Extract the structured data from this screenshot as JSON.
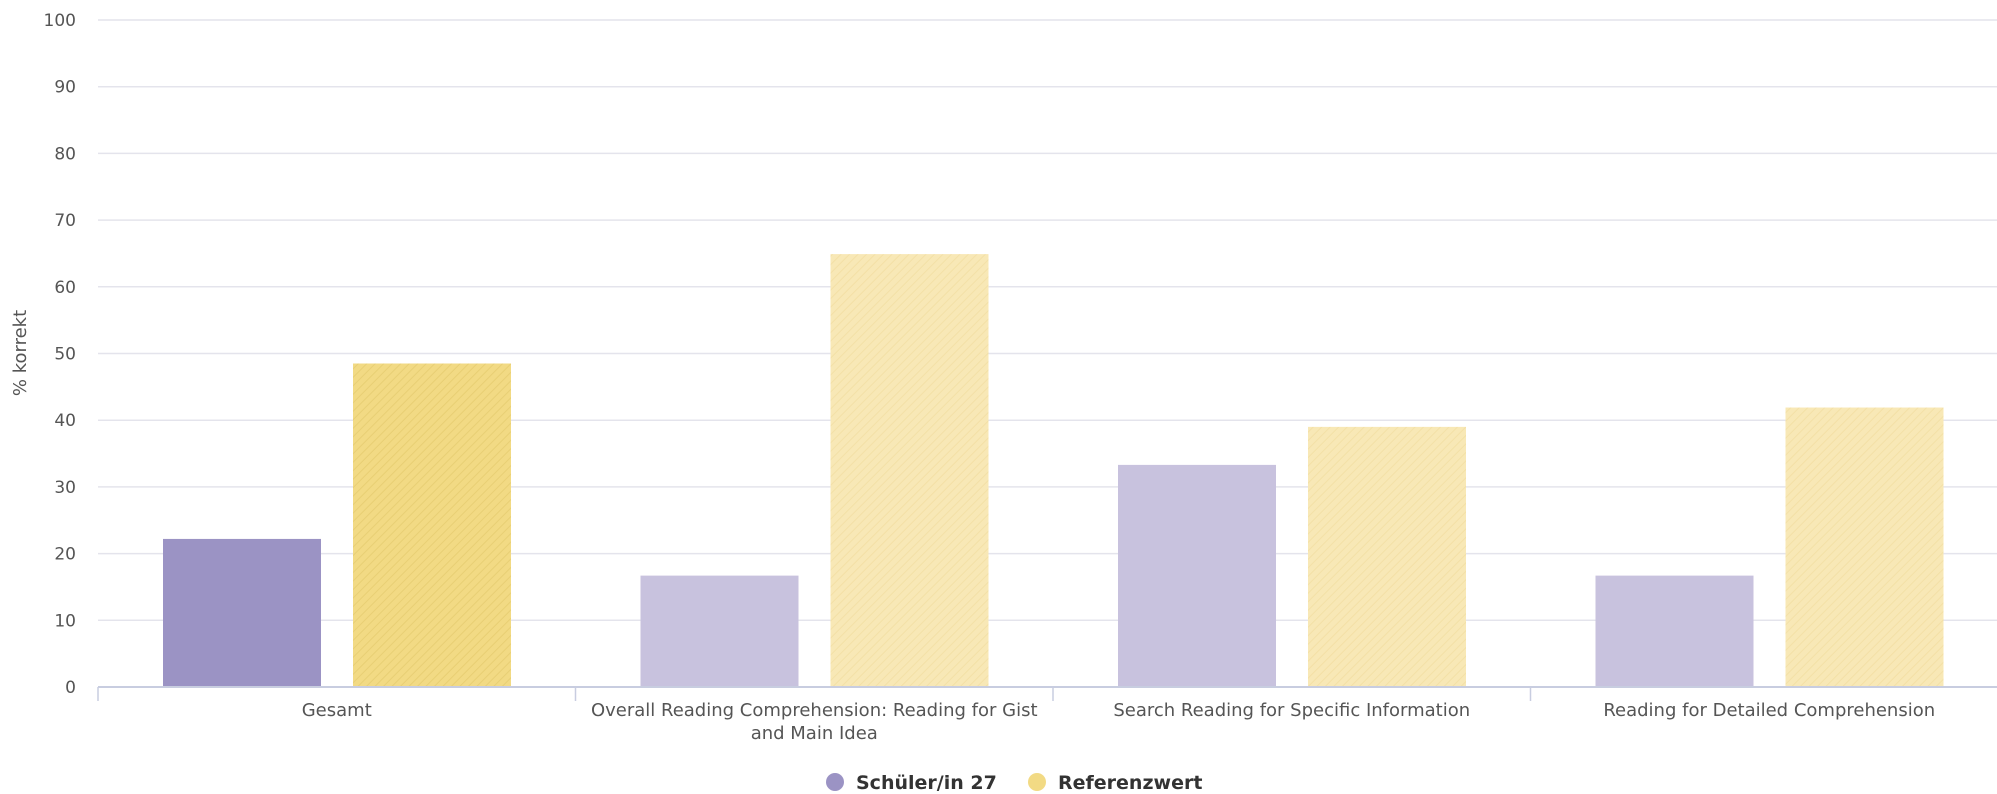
{
  "chart_data": {
    "type": "bar",
    "ylabel": "% korrekt",
    "ylim": [
      0,
      100
    ],
    "yticks": [
      0,
      10,
      20,
      30,
      40,
      50,
      60,
      70,
      80,
      90,
      100
    ],
    "grid": true,
    "legend_position": "bottom-center",
    "categories": [
      [
        "Gesamt"
      ],
      [
        "Overall Reading Comprehension: Reading for Gist",
        "and Main Idea"
      ],
      [
        "Search Reading for Specific Information"
      ],
      [
        "Reading for Detailed Comprehension"
      ]
    ],
    "series": [
      {
        "name": "Schüler/in 27",
        "values": [
          22.2,
          16.7,
          33.3,
          16.7
        ],
        "color": "#9b93c4",
        "light_color": "#c8c2de"
      },
      {
        "name": "Referenzwert",
        "values": [
          48.5,
          64.9,
          39.0,
          41.9
        ],
        "color": "#f2da84",
        "light_color": "#f8e8b6"
      }
    ]
  }
}
